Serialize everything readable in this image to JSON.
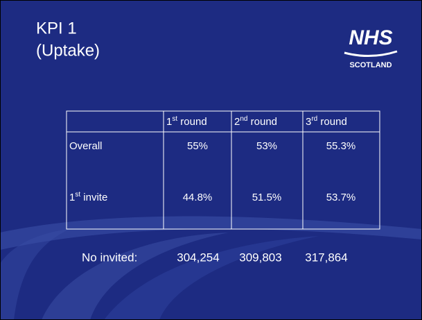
{
  "title": {
    "line1": "KPI 1",
    "line2": "(Uptake)"
  },
  "logo": {
    "name": "NHS",
    "sub": "SCOTLAND"
  },
  "table": {
    "header": [
      {
        "main": "1",
        "sup": "st",
        "tail": " round"
      },
      {
        "main": "2",
        "sup": "nd",
        "tail": " round"
      },
      {
        "main": "3",
        "sup": "rd",
        "tail": " round"
      }
    ],
    "rows": [
      {
        "label": {
          "main": "Overall"
        },
        "cells": [
          "55%",
          "53%",
          "55.3%"
        ]
      },
      {
        "label": {
          "main": "1",
          "sup": "st",
          "tail": " invite"
        },
        "cells": [
          "44.8%",
          "51.5%",
          "53.7%"
        ]
      }
    ]
  },
  "footer": {
    "label": "No invited:",
    "values": [
      "304,254",
      "309,803",
      "317,864"
    ]
  }
}
